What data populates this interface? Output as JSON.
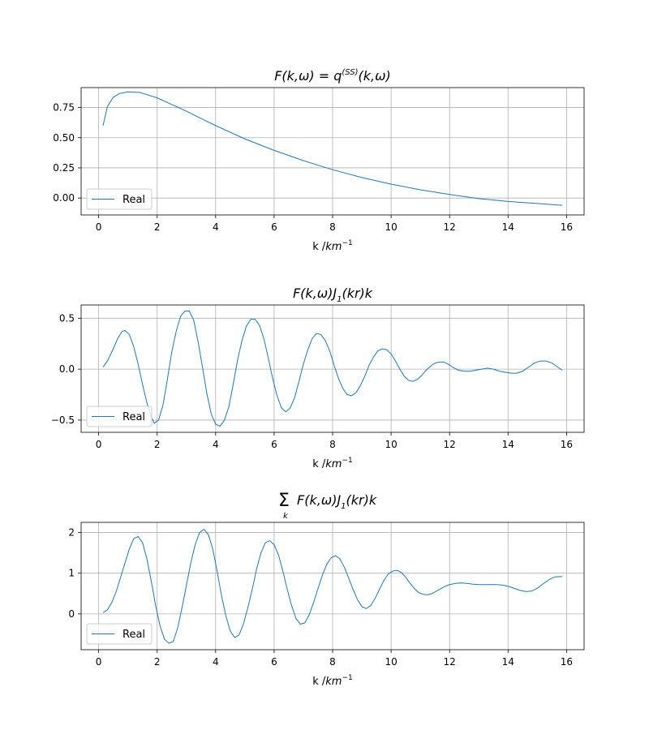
{
  "colors": {
    "series": "#1f77b4",
    "grid": "#b0b0b0",
    "axes": "#000000",
    "legend_border": "#cccccc"
  },
  "chart_data": [
    {
      "type": "line",
      "title_parts": [
        "F(k,ω) = q",
        "(SS)",
        "(k,ω)"
      ],
      "xlabel_parts": [
        "k /",
        "km",
        "−1"
      ],
      "xlim": [
        -0.6,
        16.6
      ],
      "ylim": [
        -0.14,
        0.915
      ],
      "xticks": [
        0,
        2,
        4,
        6,
        8,
        10,
        12,
        14,
        16
      ],
      "yticks": [
        0.0,
        0.25,
        0.5,
        0.75
      ],
      "ytick_labels": [
        "0.00",
        "0.25",
        "0.50",
        "0.75"
      ],
      "grid": true,
      "legend": "lower-left",
      "series": [
        {
          "name": "Real",
          "x": [
            0.15,
            0.3,
            0.5,
            0.7,
            1.0,
            1.4,
            2.0,
            3.0,
            4.0,
            5.0,
            6.0,
            7.0,
            8.0,
            9.0,
            10.0,
            11.0,
            12.0,
            13.0,
            14.0,
            15.0,
            15.85
          ],
          "y": [
            0.6,
            0.76,
            0.835,
            0.865,
            0.88,
            0.875,
            0.83,
            0.72,
            0.6,
            0.49,
            0.395,
            0.31,
            0.235,
            0.17,
            0.115,
            0.068,
            0.03,
            -0.005,
            -0.028,
            -0.045,
            -0.06
          ]
        }
      ]
    },
    {
      "type": "line",
      "title_parts": [
        "F(k,ω)J",
        "1",
        "(kr)k"
      ],
      "xlabel_parts": [
        "k /",
        "km",
        "−1"
      ],
      "xlim": [
        -0.6,
        16.6
      ],
      "ylim": [
        -0.62,
        0.63
      ],
      "xticks": [
        0,
        2,
        4,
        6,
        8,
        10,
        12,
        14,
        16
      ],
      "yticks": [
        -0.5,
        0.0,
        0.5
      ],
      "ytick_labels": [
        "−0.5",
        "0.0",
        "0.5"
      ],
      "grid": true,
      "legend": "lower-left",
      "series": [
        {
          "name": "Real",
          "x": [
            0.15,
            0.3,
            0.5,
            0.65,
            0.8,
            0.9,
            1.05,
            1.2,
            1.35,
            1.5,
            1.65,
            1.8,
            1.9,
            2.05,
            2.2,
            2.35,
            2.5,
            2.65,
            2.8,
            2.95,
            3.1,
            3.25,
            3.4,
            3.55,
            3.7,
            3.85,
            4.0,
            4.15,
            4.3,
            4.45,
            4.6,
            4.75,
            4.9,
            5.05,
            5.2,
            5.35,
            5.5,
            5.65,
            5.8,
            5.95,
            6.1,
            6.25,
            6.4,
            6.55,
            6.7,
            6.85,
            7.0,
            7.15,
            7.3,
            7.45,
            7.6,
            7.75,
            7.9,
            8.05,
            8.2,
            8.35,
            8.5,
            8.65,
            8.8,
            8.95,
            9.1,
            9.25,
            9.4,
            9.55,
            9.7,
            9.85,
            10.0,
            10.15,
            10.3,
            10.45,
            10.6,
            10.75,
            10.9,
            11.05,
            11.2,
            11.35,
            11.5,
            11.65,
            11.8,
            11.95,
            12.1,
            12.3,
            12.5,
            12.7,
            12.9,
            13.1,
            13.3,
            13.5,
            13.7,
            13.9,
            14.1,
            14.3,
            14.5,
            14.7,
            14.9,
            15.1,
            15.3,
            15.5,
            15.7,
            15.85
          ],
          "y": [
            0.02,
            0.08,
            0.2,
            0.3,
            0.37,
            0.38,
            0.34,
            0.22,
            0.05,
            -0.15,
            -0.33,
            -0.47,
            -0.53,
            -0.5,
            -0.35,
            -0.1,
            0.17,
            0.37,
            0.52,
            0.57,
            0.57,
            0.48,
            0.27,
            0.02,
            -0.24,
            -0.44,
            -0.54,
            -0.56,
            -0.5,
            -0.37,
            -0.15,
            0.09,
            0.28,
            0.42,
            0.49,
            0.49,
            0.43,
            0.3,
            0.11,
            -0.09,
            -0.26,
            -0.38,
            -0.42,
            -0.38,
            -0.28,
            -0.12,
            0.05,
            0.19,
            0.3,
            0.35,
            0.34,
            0.28,
            0.18,
            0.04,
            -0.09,
            -0.19,
            -0.25,
            -0.26,
            -0.23,
            -0.16,
            -0.07,
            0.04,
            0.12,
            0.18,
            0.2,
            0.19,
            0.15,
            0.08,
            0.0,
            -0.07,
            -0.11,
            -0.12,
            -0.1,
            -0.06,
            -0.01,
            0.03,
            0.06,
            0.07,
            0.07,
            0.05,
            0.02,
            -0.01,
            -0.02,
            -0.02,
            -0.01,
            0.0,
            0.01,
            0.0,
            -0.02,
            -0.03,
            -0.04,
            -0.04,
            -0.02,
            0.02,
            0.06,
            0.08,
            0.08,
            0.06,
            0.02,
            -0.01
          ]
        }
      ]
    },
    {
      "type": "line",
      "title_parts": [
        "Σ",
        "k",
        "F(k,ω)J",
        "1",
        "(kr)k"
      ],
      "xlabel_parts": [
        "k /",
        "km",
        "−1"
      ],
      "xlim": [
        -0.6,
        16.6
      ],
      "ylim": [
        -0.88,
        2.25
      ],
      "xticks": [
        0,
        2,
        4,
        6,
        8,
        10,
        12,
        14,
        16
      ],
      "yticks": [
        0,
        1,
        2
      ],
      "ytick_labels": [
        "0",
        "1",
        "2"
      ],
      "grid": true,
      "legend": "lower-left",
      "series": [
        {
          "name": "Real",
          "x": [
            0.15,
            0.3,
            0.45,
            0.6,
            0.75,
            0.9,
            1.05,
            1.2,
            1.35,
            1.5,
            1.65,
            1.8,
            1.95,
            2.1,
            2.25,
            2.4,
            2.55,
            2.7,
            2.85,
            3.0,
            3.15,
            3.3,
            3.45,
            3.6,
            3.75,
            3.9,
            4.05,
            4.2,
            4.35,
            4.5,
            4.65,
            4.8,
            4.95,
            5.1,
            5.25,
            5.4,
            5.55,
            5.7,
            5.85,
            6.0,
            6.15,
            6.3,
            6.45,
            6.6,
            6.75,
            6.9,
            7.05,
            7.2,
            7.35,
            7.5,
            7.65,
            7.8,
            7.95,
            8.1,
            8.25,
            8.4,
            8.55,
            8.7,
            8.85,
            9.0,
            9.15,
            9.3,
            9.45,
            9.6,
            9.75,
            9.9,
            10.05,
            10.2,
            10.35,
            10.5,
            10.65,
            10.8,
            10.95,
            11.1,
            11.25,
            11.4,
            11.55,
            11.7,
            11.85,
            12.0,
            12.2,
            12.4,
            12.6,
            12.8,
            13.0,
            13.2,
            13.4,
            13.6,
            13.8,
            14.0,
            14.2,
            14.4,
            14.6,
            14.8,
            15.0,
            15.2,
            15.4,
            15.6,
            15.85
          ],
          "y": [
            0.03,
            0.1,
            0.28,
            0.55,
            0.9,
            1.25,
            1.6,
            1.85,
            1.9,
            1.75,
            1.35,
            0.8,
            0.2,
            -0.3,
            -0.62,
            -0.72,
            -0.68,
            -0.35,
            0.15,
            0.7,
            1.25,
            1.7,
            2.0,
            2.08,
            1.95,
            1.6,
            1.05,
            0.45,
            -0.05,
            -0.42,
            -0.58,
            -0.52,
            -0.25,
            0.15,
            0.6,
            1.1,
            1.5,
            1.75,
            1.8,
            1.7,
            1.45,
            1.05,
            0.6,
            0.2,
            -0.12,
            -0.25,
            -0.22,
            -0.02,
            0.28,
            0.62,
            0.95,
            1.22,
            1.38,
            1.43,
            1.35,
            1.15,
            0.88,
            0.6,
            0.35,
            0.18,
            0.13,
            0.2,
            0.38,
            0.6,
            0.82,
            0.98,
            1.05,
            1.07,
            1.02,
            0.9,
            0.75,
            0.62,
            0.52,
            0.48,
            0.47,
            0.5,
            0.56,
            0.62,
            0.68,
            0.72,
            0.75,
            0.76,
            0.75,
            0.73,
            0.72,
            0.72,
            0.72,
            0.72,
            0.71,
            0.68,
            0.63,
            0.58,
            0.55,
            0.56,
            0.63,
            0.74,
            0.84,
            0.91,
            0.92
          ]
        }
      ]
    }
  ]
}
